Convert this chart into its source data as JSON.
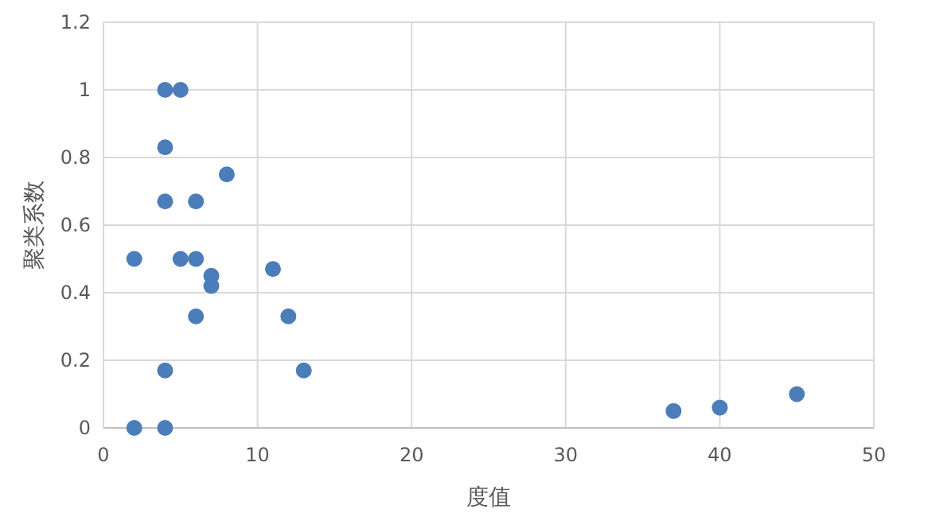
{
  "chart_data": {
    "type": "scatter",
    "xlabel": "度值",
    "ylabel": "聚类系数",
    "xlim": [
      0,
      50
    ],
    "ylim": [
      0,
      1.2
    ],
    "xticks": [
      0,
      10,
      20,
      30,
      40,
      50
    ],
    "yticks": [
      0,
      0.2,
      0.4,
      0.6,
      0.8,
      1,
      1.2
    ],
    "grid": true,
    "marker": "circle",
    "series": [
      {
        "color": "#4a7dba",
        "x": [
          2,
          2,
          4,
          5,
          4,
          4,
          4,
          4,
          6,
          6,
          5,
          6,
          7,
          7,
          8,
          11,
          12,
          13,
          37,
          40,
          45
        ],
        "values": [
          0,
          0.5,
          1,
          1,
          0.83,
          0.67,
          0.17,
          0,
          0.67,
          0.5,
          0.5,
          0.33,
          0.45,
          0.42,
          0.75,
          0.47,
          0.33,
          0.17,
          0.05,
          0.06,
          0.1
        ]
      }
    ]
  }
}
